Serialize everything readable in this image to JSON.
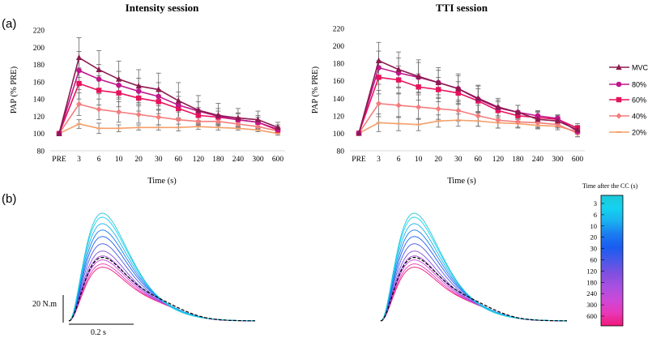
{
  "panel_labels": {
    "a": "(a)",
    "b": "(b)"
  },
  "chart_data": [
    {
      "type": "line",
      "title": "Intensity session",
      "xlabel": "Time (s)",
      "ylabel": "PAP (% PRE)",
      "categories": [
        "PRE",
        "3",
        "6",
        "10",
        "20",
        "30",
        "60",
        "120",
        "180",
        "240",
        "300",
        "600"
      ],
      "ylim": [
        80,
        220
      ],
      "yticks": [
        80,
        100,
        120,
        140,
        160,
        180,
        200,
        220
      ],
      "grid": false,
      "series": [
        {
          "name": "MVC",
          "color": "#8b1a4f",
          "marker": "triangle",
          "values": [
            100,
            188,
            174,
            163,
            155,
            151,
            138,
            127,
            121,
            118,
            116,
            107
          ],
          "error": [
            0,
            23,
            22,
            21,
            19,
            19,
            21,
            17,
            14,
            11,
            10,
            6
          ]
        },
        {
          "name": "80%",
          "color": "#c0168c",
          "marker": "circle",
          "values": [
            100,
            173,
            163,
            156,
            149,
            143,
            133,
            126,
            120,
            116,
            113,
            105
          ],
          "error": [
            0,
            22,
            17,
            16,
            15,
            16,
            15,
            11,
            9,
            8,
            8,
            5
          ]
        },
        {
          "name": "60%",
          "color": "#e8125c",
          "marker": "square",
          "values": [
            100,
            158,
            150,
            147,
            141,
            137,
            129,
            121,
            119,
            116,
            113,
            104
          ],
          "error": [
            0,
            18,
            17,
            16,
            15,
            14,
            14,
            9,
            7,
            7,
            6,
            4
          ]
        },
        {
          "name": "40%",
          "color": "#f47c7c",
          "marker": "diamond",
          "values": [
            100,
            134,
            128,
            125,
            122,
            119,
            116,
            114,
            114,
            111,
            108,
            103
          ],
          "error": [
            0,
            13,
            12,
            12,
            10,
            9,
            9,
            5,
            5,
            5,
            4,
            3
          ]
        },
        {
          "name": "20%",
          "color": "#f4a06a",
          "marker": "dash",
          "values": [
            100,
            111,
            106,
            106,
            107,
            107,
            107,
            108,
            107,
            106,
            104,
            100
          ],
          "error": [
            0,
            5,
            6,
            4,
            3,
            3,
            4,
            3,
            3,
            2,
            2,
            2
          ]
        }
      ]
    },
    {
      "type": "line",
      "title": "TTI session",
      "xlabel": "Time (s)",
      "ylabel": "PAP (% PRE)",
      "categories": [
        "PRE",
        "3",
        "6",
        "10",
        "20",
        "30",
        "60",
        "120",
        "180",
        "240",
        "300",
        "600"
      ],
      "ylim": [
        80,
        220
      ],
      "yticks": [
        80,
        100,
        120,
        140,
        160,
        180,
        200,
        220
      ],
      "grid": false,
      "legend": "right",
      "series": [
        {
          "name": "MVC",
          "color": "#8b1a4f",
          "marker": "triangle",
          "values": [
            100,
            183,
            173,
            165,
            158,
            151,
            140,
            130,
            124,
            116,
            114,
            104
          ],
          "error": [
            0,
            21,
            20,
            19,
            17,
            17,
            15,
            10,
            8,
            9,
            7,
            5
          ]
        },
        {
          "name": "80%",
          "color": "#c0168c",
          "marker": "circle",
          "values": [
            100,
            175,
            169,
            164,
            158,
            151,
            139,
            129,
            124,
            120,
            117,
            102
          ],
          "error": [
            0,
            19,
            17,
            17,
            14,
            15,
            15,
            9,
            8,
            6,
            4,
            6
          ]
        },
        {
          "name": "60%",
          "color": "#e8125c",
          "marker": "square",
          "values": [
            100,
            164,
            161,
            153,
            150,
            146,
            137,
            126,
            120,
            118,
            116,
            106
          ],
          "error": [
            0,
            19,
            16,
            15,
            14,
            13,
            14,
            10,
            6,
            6,
            4,
            5
          ]
        },
        {
          "name": "40%",
          "color": "#f47c7c",
          "marker": "diamond",
          "values": [
            100,
            134,
            132,
            130,
            128,
            126,
            120,
            115,
            113,
            112,
            110,
            100
          ],
          "error": [
            0,
            15,
            14,
            14,
            12,
            12,
            12,
            9,
            6,
            6,
            4,
            4
          ]
        },
        {
          "name": "20%",
          "color": "#f4a06a",
          "marker": "dash",
          "values": [
            100,
            112,
            111,
            110,
            114,
            115,
            114,
            112,
            111,
            109,
            108,
            102
          ],
          "error": [
            0,
            10,
            8,
            7,
            7,
            7,
            6,
            6,
            5,
            4,
            4,
            3
          ]
        }
      ]
    }
  ],
  "traces": {
    "torque_scale": "20 N.m",
    "time_scale": "0.2 s",
    "colorbar_title": "Time after the CC (s)",
    "colorbar_labels": [
      "3",
      "6",
      "10",
      "20",
      "30",
      "60",
      "120",
      "180",
      "240",
      "300",
      "600"
    ],
    "colorbar_colors": [
      "#1ec8d8",
      "#14d2f0",
      "#1ab0f0",
      "#1a7af0",
      "#1a5cf0",
      "#4a58e8",
      "#8050e0",
      "#a850e0",
      "#cc48d8",
      "#e838b8",
      "#f01878"
    ]
  }
}
